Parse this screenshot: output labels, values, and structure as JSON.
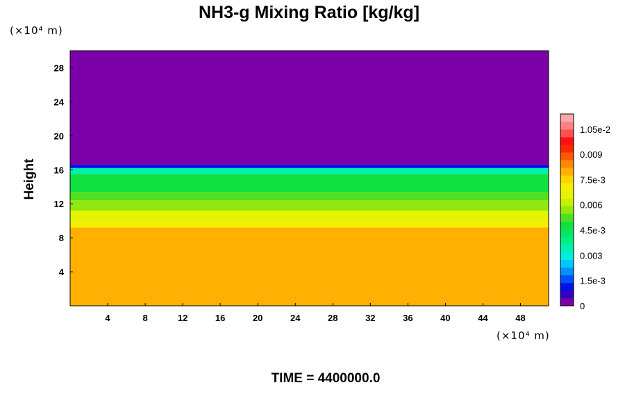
{
  "chart_data": {
    "type": "heatmap",
    "title": "NH3-g Mixing Ratio [kg/kg]",
    "ylabel": "Height",
    "y_unit": "(×10⁴ m)",
    "x_unit": "(×10⁴ m)",
    "x_ticks": [
      4,
      8,
      12,
      16,
      20,
      24,
      28,
      32,
      36,
      40,
      44,
      48
    ],
    "y_ticks": [
      4,
      8,
      12,
      16,
      20,
      24,
      28
    ],
    "xlim": [
      0,
      51
    ],
    "ylim": [
      0,
      30
    ],
    "colorbar": {
      "range": [
        0,
        0.0114
      ],
      "tick_values": [
        0,
        0.0015,
        0.003,
        0.0045,
        0.006,
        0.0075,
        0.009,
        0.0105
      ],
      "tick_labels": [
        "0",
        "1.5e-3",
        "0.003",
        "4.5e-3",
        "0.006",
        "7.5e-3",
        "0.009",
        "1.05e-2"
      ],
      "colors": [
        "#7b00a8",
        "#3300c8",
        "#0010e6",
        "#0050ff",
        "#0090ff",
        "#00c8ff",
        "#00eee0",
        "#00f0b0",
        "#00ee88",
        "#00e860",
        "#10e040",
        "#50e020",
        "#90e810",
        "#c8f000",
        "#e4f400",
        "#f4ee00",
        "#ffd400",
        "#ffb000",
        "#ff8800",
        "#ff5800",
        "#ff2800",
        "#ff1010",
        "#ff5050",
        "#ff8080",
        "#ffa8a8"
      ]
    },
    "layers": [
      {
        "y_bottom": 0,
        "y_top": 9.2,
        "value": 0.0078
      },
      {
        "y_bottom": 9.2,
        "y_top": 10.0,
        "value": 0.0071
      },
      {
        "y_bottom": 10.0,
        "y_top": 11.2,
        "value": 0.0066
      },
      {
        "y_bottom": 11.2,
        "y_top": 12.4,
        "value": 0.0059
      },
      {
        "y_bottom": 12.4,
        "y_top": 13.4,
        "value": 0.0052
      },
      {
        "y_bottom": 13.4,
        "y_top": 15.5,
        "value": 0.0047
      },
      {
        "y_bottom": 15.5,
        "y_top": 16.2,
        "value": 0.0035
      },
      {
        "y_bottom": 16.2,
        "y_top": 16.6,
        "value": 0.0012
      },
      {
        "y_bottom": 16.6,
        "y_top": 30,
        "value": 0
      }
    ]
  },
  "time_label": "TIME = 4400000.0"
}
